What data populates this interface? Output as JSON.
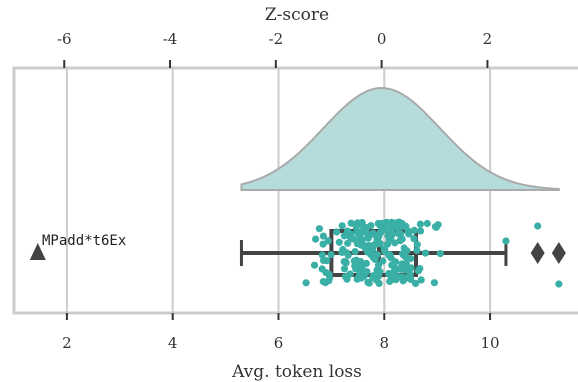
{
  "chart_data": {
    "type": "raincloud",
    "xlabel": "Avg. token loss",
    "top_xlabel": "Z-score",
    "xlim": [
      1.0,
      11.7
    ],
    "x_ticks": [
      2,
      4,
      6,
      8,
      10
    ],
    "x_tick_labels": [
      "2",
      "4",
      "6",
      "8",
      "10"
    ],
    "z_mean": 7.95,
    "z_std": 1.0,
    "z_ticks": [
      -6,
      -4,
      -2,
      0,
      2
    ],
    "z_tick_labels": [
      "-6",
      "-4",
      "-2",
      "0",
      "2"
    ],
    "grid": true,
    "box": {
      "whisker_low": 5.3,
      "q1": 7.0,
      "median": 7.9,
      "q3": 8.6,
      "whisker_high": 10.3
    },
    "outliers": [
      10.9,
      11.3
    ],
    "density_range": [
      5.3,
      11.3
    ],
    "annotated_point": {
      "label": "MPadd*t6Ex",
      "x": 1.45
    },
    "colors": {
      "points": "#3aafa6",
      "density_fill": "#b5dcdb",
      "density_stroke": "#aaaaaa",
      "box": "#444444",
      "grid": "#cccccc",
      "frame": "#cccccc"
    }
  }
}
